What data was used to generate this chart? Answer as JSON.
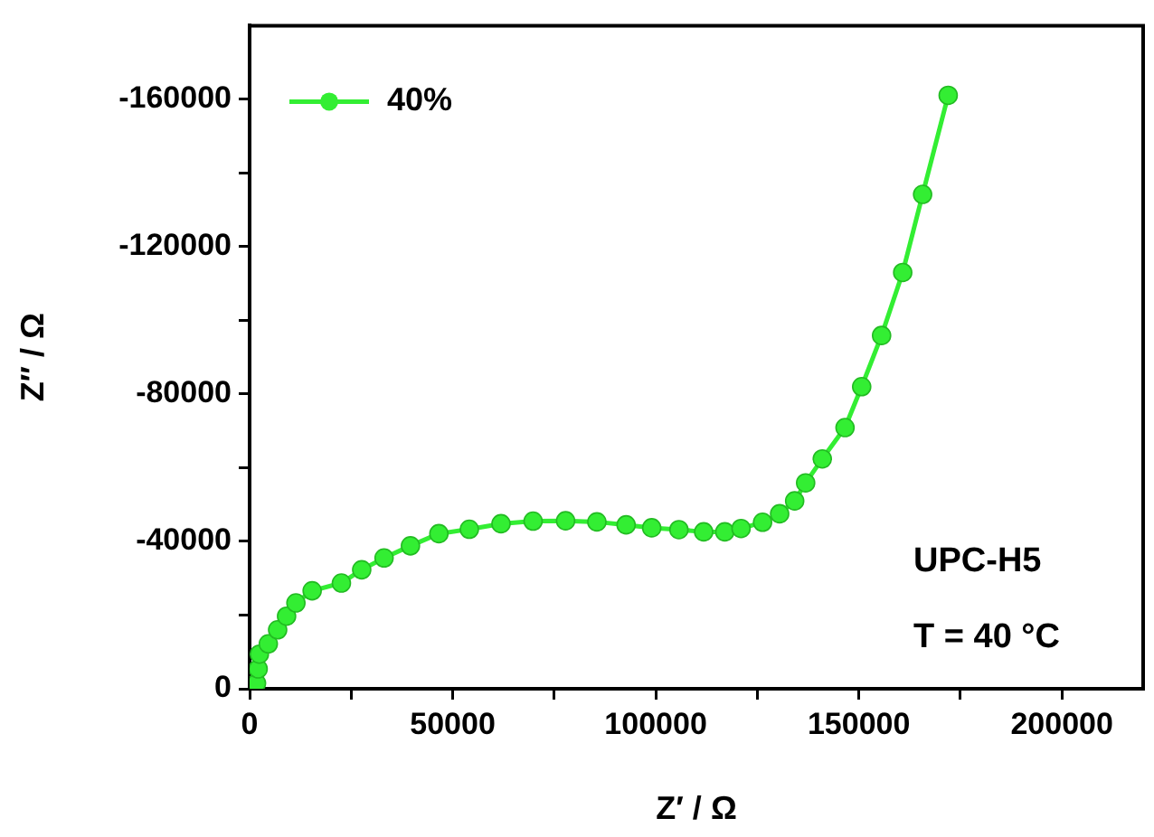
{
  "chart_data": {
    "type": "line",
    "xlabel": "Z′ / Ω",
    "ylabel": "Z″ / Ω",
    "xlim": [
      0,
      220000
    ],
    "xticks": [
      0,
      {
        "value": 25000,
        "label": null
      },
      50000,
      {
        "value": 75000,
        "label": null
      },
      100000,
      {
        "value": 125000,
        "label": null
      },
      150000,
      {
        "value": 175000,
        "label": null
      },
      200000
    ],
    "ylim": [
      0,
      -180000
    ],
    "yticks": [
      0,
      {
        "value": -20000,
        "label": null
      },
      -40000,
      {
        "value": -60000,
        "label": null
      },
      -80000,
      {
        "value": -100000,
        "label": null
      },
      -120000,
      {
        "value": -140000,
        "label": null
      },
      -160000
    ],
    "grid": false,
    "legend": "top left",
    "marker": "circle",
    "line_style": "solid",
    "annotations": [
      "UPC-H5",
      "T = 40 °C"
    ],
    "series": [
      {
        "name": "40%",
        "color": "#33ee33",
        "x": [
          500,
          1700,
          2100,
          2400,
          4600,
          6900,
          9100,
          11400,
          15400,
          22600,
          27600,
          33100,
          39600,
          46600,
          54100,
          61900,
          69800,
          77800,
          85500,
          92700,
          99000,
          105700,
          111800,
          117000,
          121000,
          126300,
          130500,
          134200,
          136900,
          141000,
          146600,
          150700,
          155600,
          160800,
          165700,
          172000
        ],
        "values": [
          -500,
          -1500,
          -5400,
          -9400,
          -12200,
          -16000,
          -19700,
          -23300,
          -26600,
          -28700,
          -32300,
          -35500,
          -38800,
          -42100,
          -43300,
          -44800,
          -45500,
          -45600,
          -45300,
          -44500,
          -43700,
          -43200,
          -42600,
          -42600,
          -43500,
          -45200,
          -47500,
          -51000,
          -55900,
          -62400,
          -70900,
          -82000,
          -95900,
          -113000,
          -134200,
          -161100
        ]
      }
    ]
  }
}
